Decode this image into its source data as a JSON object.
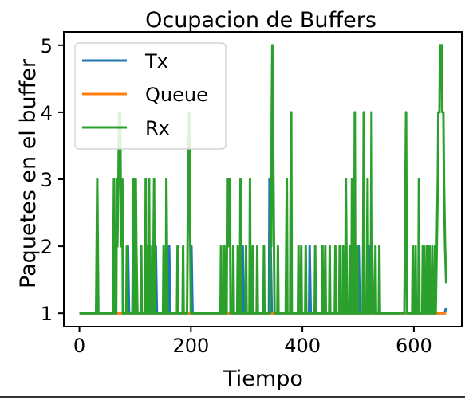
{
  "chart_data": {
    "type": "line",
    "title": "Ocupacion de Buffers",
    "xlabel": "Tiempo",
    "ylabel": "Paquetes en el buffer",
    "xlim": [
      -28,
      686
    ],
    "ylim": [
      0.8,
      5.2
    ],
    "xticks": [
      0,
      200,
      400,
      600
    ],
    "yticks": [
      1,
      2,
      3,
      4,
      5
    ],
    "grid": false,
    "legend_position": "top-left",
    "series": [
      {
        "name": "Tx",
        "color": "#1f77b4",
        "points": [
          [
            0,
            1
          ],
          [
            86,
            1
          ],
          [
            87,
            2
          ],
          [
            89,
            1
          ],
          [
            136,
            1
          ],
          [
            137,
            2
          ],
          [
            139,
            1
          ],
          [
            160,
            1
          ],
          [
            161,
            2
          ],
          [
            163,
            1
          ],
          [
            200,
            1
          ],
          [
            201,
            2
          ],
          [
            203,
            1
          ],
          [
            292,
            1
          ],
          [
            293,
            2
          ],
          [
            295,
            1
          ],
          [
            340,
            1
          ],
          [
            341,
            3
          ],
          [
            343,
            2
          ],
          [
            345,
            1
          ],
          [
            412,
            1
          ],
          [
            413,
            2
          ],
          [
            415,
            1
          ],
          [
            500,
            1
          ],
          [
            501,
            2
          ],
          [
            503,
            1
          ],
          [
            520,
            1
          ],
          [
            521,
            2
          ],
          [
            523,
            1
          ],
          [
            622,
            1
          ],
          [
            623,
            2
          ],
          [
            625,
            1
          ],
          [
            655,
            1
          ],
          [
            658,
            1.08
          ]
        ]
      },
      {
        "name": "Queue",
        "color": "#ff7f0e",
        "points": [
          [
            0,
            1
          ],
          [
            658,
            1
          ]
        ]
      },
      {
        "name": "Rx",
        "color": "#2ca02c",
        "points": [
          [
            0,
            1
          ],
          [
            30,
            1
          ],
          [
            31,
            2
          ],
          [
            32,
            3
          ],
          [
            33,
            2
          ],
          [
            34,
            1
          ],
          [
            60,
            1
          ],
          [
            61,
            2
          ],
          [
            62,
            3
          ],
          [
            63,
            1
          ],
          [
            66,
            1
          ],
          [
            67,
            3
          ],
          [
            68,
            2
          ],
          [
            70,
            3
          ],
          [
            71,
            4
          ],
          [
            72,
            3
          ],
          [
            73,
            4
          ],
          [
            74,
            3
          ],
          [
            75,
            2
          ],
          [
            77,
            3
          ],
          [
            78,
            1
          ],
          [
            84,
            1
          ],
          [
            85,
            2
          ],
          [
            86,
            1
          ],
          [
            95,
            1
          ],
          [
            96,
            2
          ],
          [
            97,
            3
          ],
          [
            98,
            1
          ],
          [
            100,
            1
          ],
          [
            101,
            3
          ],
          [
            102,
            2
          ],
          [
            104,
            1
          ],
          [
            110,
            1
          ],
          [
            111,
            2
          ],
          [
            112,
            1
          ],
          [
            118,
            1
          ],
          [
            119,
            3
          ],
          [
            120,
            1
          ],
          [
            121,
            2
          ],
          [
            122,
            1
          ],
          [
            124,
            1
          ],
          [
            125,
            3
          ],
          [
            126,
            1
          ],
          [
            127,
            2
          ],
          [
            128,
            1
          ],
          [
            132,
            1
          ],
          [
            133,
            2
          ],
          [
            134,
            3
          ],
          [
            135,
            1
          ],
          [
            150,
            1
          ],
          [
            151,
            2
          ],
          [
            152,
            1
          ],
          [
            155,
            1
          ],
          [
            156,
            3
          ],
          [
            157,
            2
          ],
          [
            158,
            1
          ],
          [
            175,
            1
          ],
          [
            176,
            2
          ],
          [
            177,
            1
          ],
          [
            185,
            1
          ],
          [
            186,
            2
          ],
          [
            187,
            1
          ],
          [
            193,
            1
          ],
          [
            194,
            2
          ],
          [
            195,
            3
          ],
          [
            197,
            4
          ],
          [
            198,
            3
          ],
          [
            199,
            2
          ],
          [
            200,
            1
          ],
          [
            253,
            1
          ],
          [
            254,
            2
          ],
          [
            255,
            1
          ],
          [
            259,
            1
          ],
          [
            260,
            2
          ],
          [
            261,
            1
          ],
          [
            264,
            1
          ],
          [
            265,
            3
          ],
          [
            266,
            2
          ],
          [
            268,
            3
          ],
          [
            269,
            2
          ],
          [
            270,
            3
          ],
          [
            271,
            1
          ],
          [
            275,
            1
          ],
          [
            276,
            2
          ],
          [
            277,
            1
          ],
          [
            283,
            1
          ],
          [
            284,
            2
          ],
          [
            285,
            1
          ],
          [
            288,
            1
          ],
          [
            289,
            3
          ],
          [
            290,
            1
          ],
          [
            298,
            1
          ],
          [
            299,
            2
          ],
          [
            300,
            1
          ],
          [
            305,
            1
          ],
          [
            306,
            3
          ],
          [
            307,
            1
          ],
          [
            310,
            1
          ],
          [
            311,
            2
          ],
          [
            312,
            1
          ],
          [
            318,
            1
          ],
          [
            319,
            2
          ],
          [
            320,
            1
          ],
          [
            330,
            1
          ],
          [
            331,
            2
          ],
          [
            332,
            1
          ],
          [
            342,
            1
          ],
          [
            343,
            3
          ],
          [
            344,
            2
          ],
          [
            345,
            4
          ],
          [
            346,
            5
          ],
          [
            347,
            4
          ],
          [
            348,
            3
          ],
          [
            349,
            2
          ],
          [
            350,
            1
          ],
          [
            355,
            1
          ],
          [
            356,
            2
          ],
          [
            357,
            1
          ],
          [
            370,
            1
          ],
          [
            371,
            2
          ],
          [
            372,
            3
          ],
          [
            373,
            1
          ],
          [
            378,
            1
          ],
          [
            379,
            3
          ],
          [
            380,
            4
          ],
          [
            381,
            1
          ],
          [
            392,
            1
          ],
          [
            393,
            2
          ],
          [
            394,
            1
          ],
          [
            397,
            1
          ],
          [
            398,
            2
          ],
          [
            399,
            1
          ],
          [
            405,
            1
          ],
          [
            406,
            2
          ],
          [
            407,
            1
          ],
          [
            422,
            1
          ],
          [
            423,
            2
          ],
          [
            424,
            1
          ],
          [
            435,
            1
          ],
          [
            436,
            2
          ],
          [
            437,
            1
          ],
          [
            440,
            1
          ],
          [
            441,
            2
          ],
          [
            442,
            1
          ],
          [
            448,
            1
          ],
          [
            449,
            2
          ],
          [
            450,
            1
          ],
          [
            458,
            1
          ],
          [
            459,
            2
          ],
          [
            460,
            1
          ],
          [
            466,
            1
          ],
          [
            467,
            2
          ],
          [
            468,
            1
          ],
          [
            472,
            1
          ],
          [
            473,
            2
          ],
          [
            474,
            1
          ],
          [
            477,
            1
          ],
          [
            478,
            3
          ],
          [
            479,
            2
          ],
          [
            480,
            1
          ],
          [
            484,
            1
          ],
          [
            485,
            2
          ],
          [
            486,
            1
          ],
          [
            488,
            1
          ],
          [
            489,
            3
          ],
          [
            490,
            1
          ],
          [
            493,
            1
          ],
          [
            494,
            4
          ],
          [
            495,
            1
          ],
          [
            498,
            1
          ],
          [
            499,
            2
          ],
          [
            500,
            1
          ],
          [
            508,
            1
          ],
          [
            509,
            2
          ],
          [
            510,
            4
          ],
          [
            511,
            1
          ],
          [
            515,
            1
          ],
          [
            516,
            2
          ],
          [
            517,
            3
          ],
          [
            518,
            1
          ],
          [
            522,
            1
          ],
          [
            523,
            2
          ],
          [
            524,
            4
          ],
          [
            525,
            2
          ],
          [
            527,
            1
          ],
          [
            530,
            1
          ],
          [
            531,
            2
          ],
          [
            532,
            1
          ],
          [
            537,
            1
          ],
          [
            538,
            2
          ],
          [
            539,
            1
          ],
          [
            583,
            1
          ],
          [
            584,
            2
          ],
          [
            585,
            3
          ],
          [
            586,
            4
          ],
          [
            587,
            2
          ],
          [
            588,
            1
          ],
          [
            597,
            1
          ],
          [
            598,
            2
          ],
          [
            599,
            1
          ],
          [
            602,
            1
          ],
          [
            603,
            2
          ],
          [
            604,
            1
          ],
          [
            608,
            1
          ],
          [
            609,
            3
          ],
          [
            610,
            1
          ],
          [
            615,
            1
          ],
          [
            616,
            2
          ],
          [
            617,
            1
          ],
          [
            618,
            2
          ],
          [
            619,
            1
          ],
          [
            622,
            1
          ],
          [
            623,
            2
          ],
          [
            624,
            1
          ],
          [
            627,
            1
          ],
          [
            628,
            2
          ],
          [
            629,
            1
          ],
          [
            632,
            1
          ],
          [
            633,
            2
          ],
          [
            634,
            1
          ],
          [
            637,
            1
          ],
          [
            638,
            2
          ],
          [
            639,
            1
          ],
          [
            641,
            2
          ],
          [
            643,
            3
          ],
          [
            644,
            4
          ],
          [
            646,
            4
          ],
          [
            647,
            5
          ],
          [
            650,
            5
          ],
          [
            651,
            4
          ],
          [
            653,
            4
          ],
          [
            654,
            3
          ],
          [
            656,
            2
          ],
          [
            658,
            1.45
          ]
        ]
      }
    ]
  }
}
